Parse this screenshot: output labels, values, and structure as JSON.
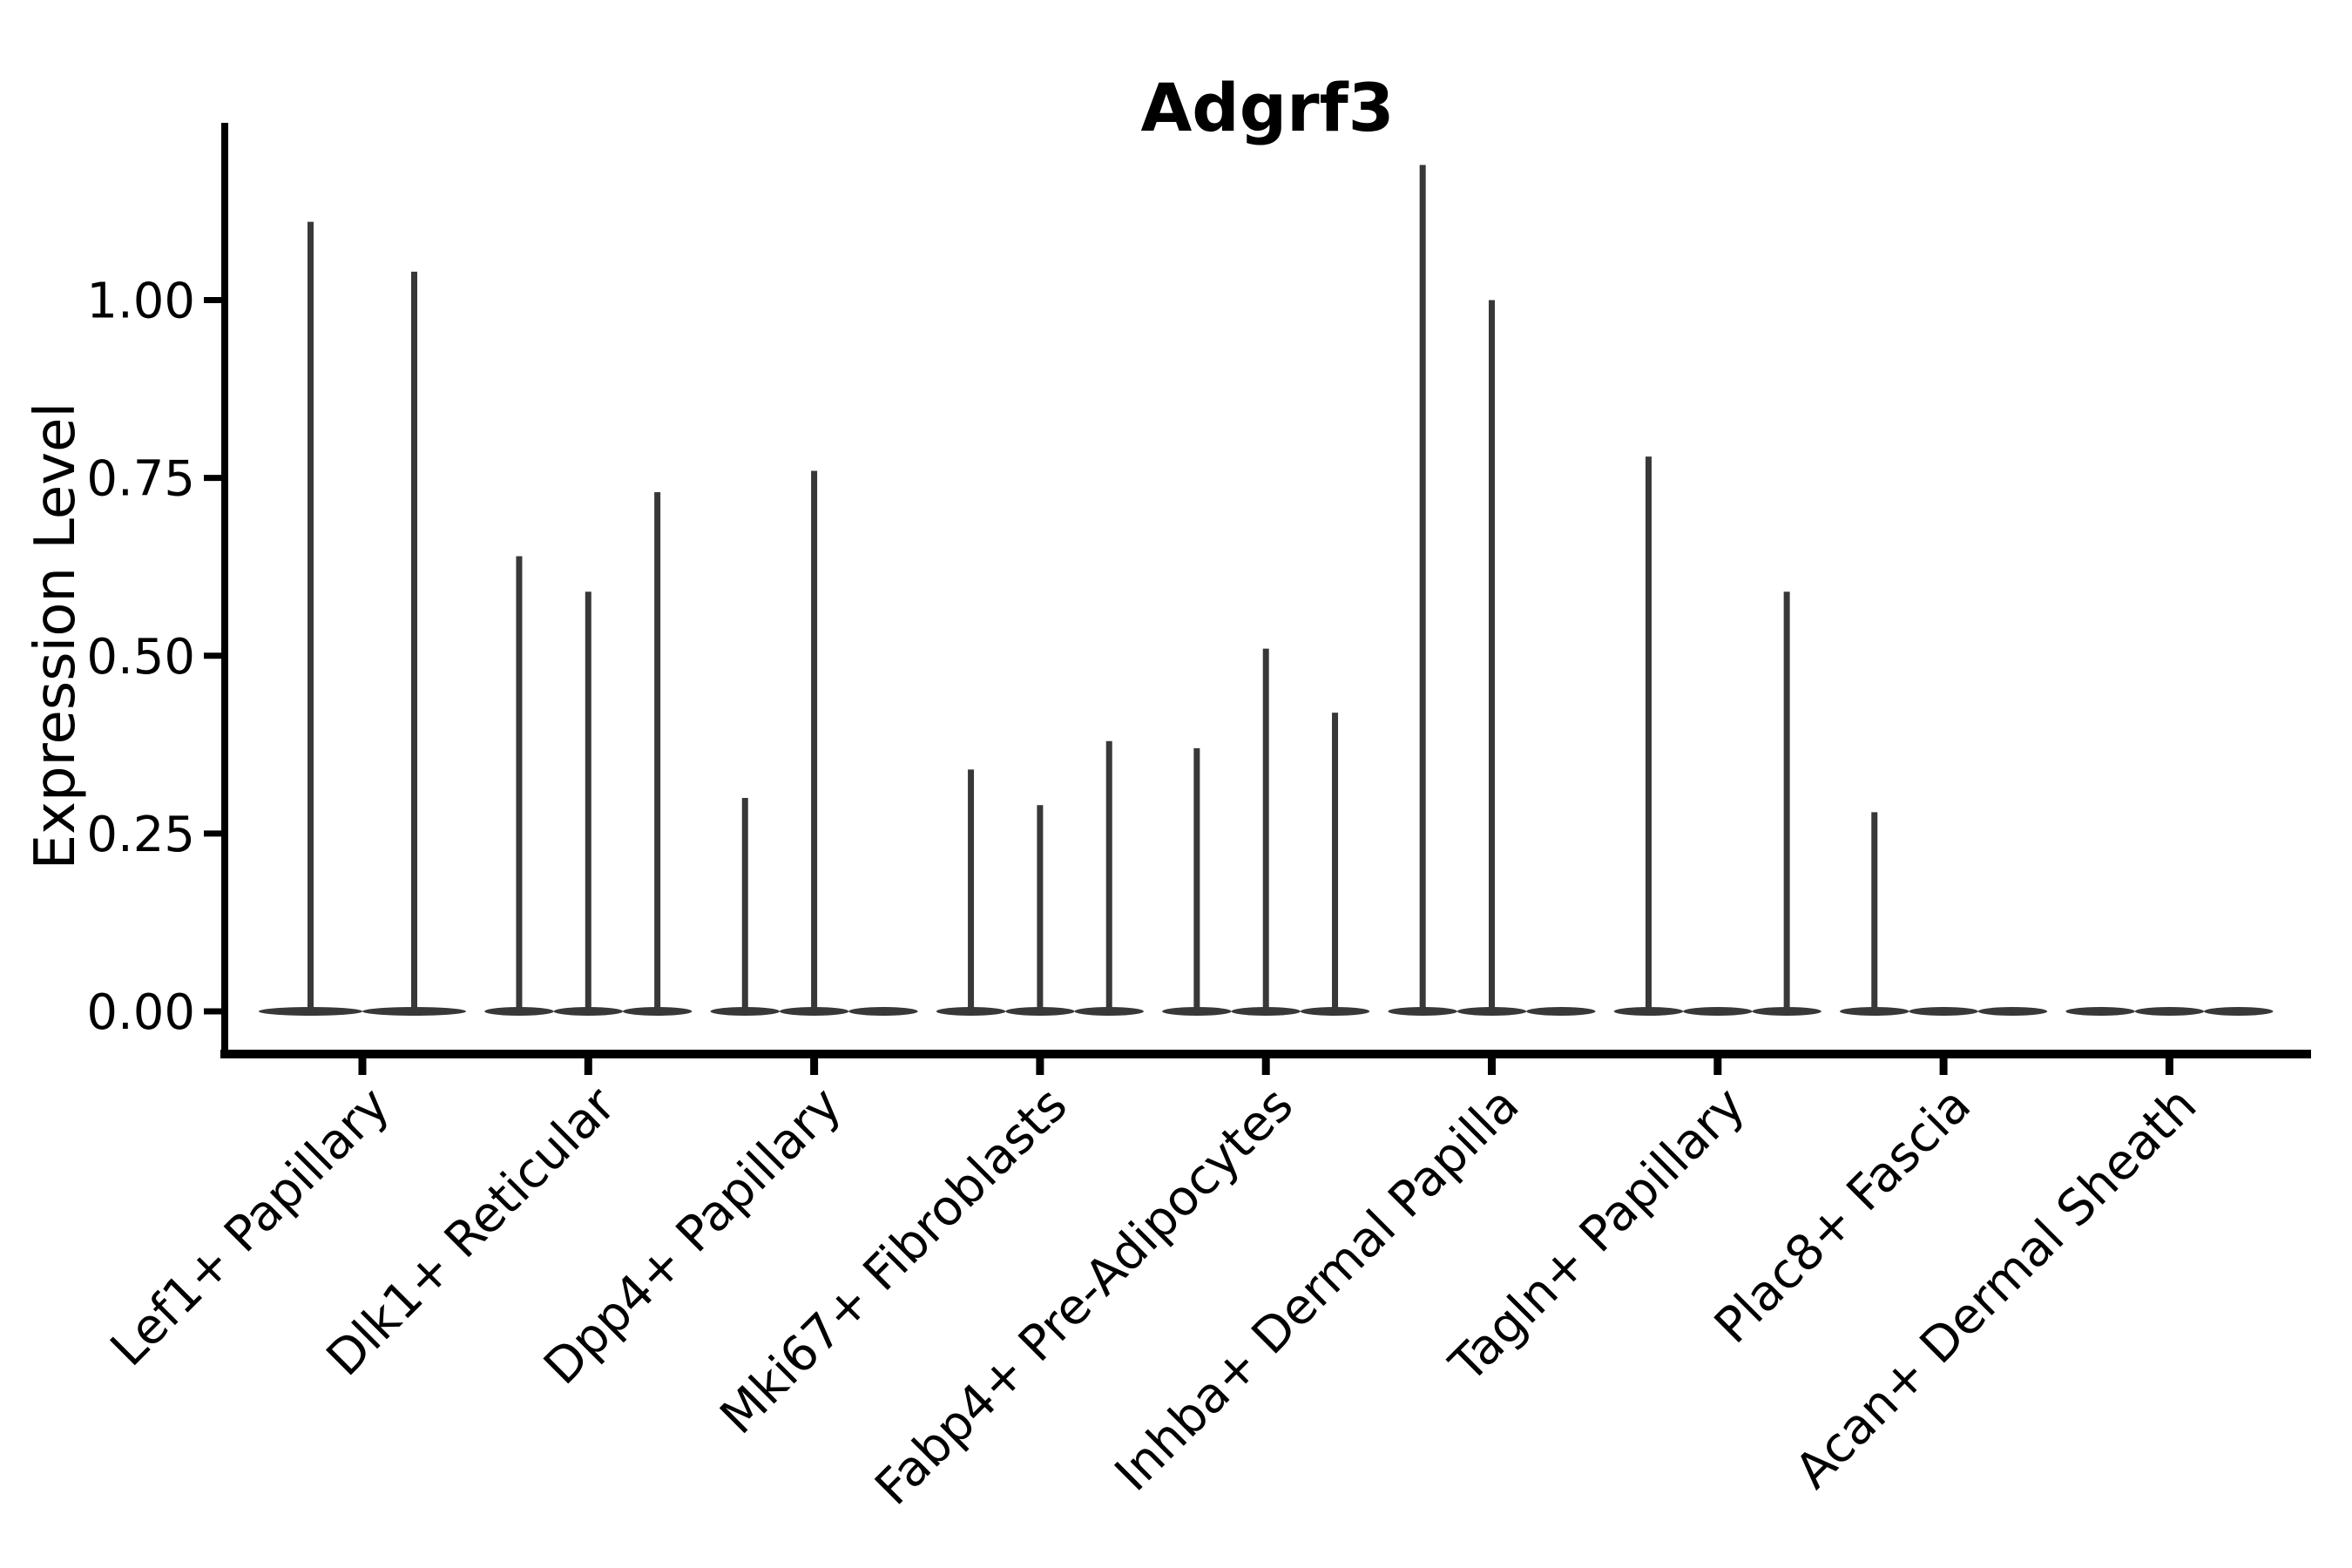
{
  "chart_data": {
    "type": "violin",
    "title": "Adgrf3",
    "xlabel": "",
    "ylabel": "Expression Level",
    "grid": false,
    "legend": "none",
    "ylim": [
      -0.06,
      1.25
    ],
    "yticks": [
      {
        "value": 0.0,
        "label": "0.00"
      },
      {
        "value": 0.25,
        "label": "0.25"
      },
      {
        "value": 0.5,
        "label": "0.50"
      },
      {
        "value": 0.75,
        "label": "0.75"
      },
      {
        "value": 1.0,
        "label": "1.00"
      }
    ],
    "categories": [
      "Lef1+ Papillary",
      "Dlk1+ Reticular",
      "Dpp4+ Papillary",
      "Mki67+ Fibroblasts",
      "Fabp4+ Pre-Adipocytes",
      "Inhba+ Dermal Papilla",
      "Tagln+ Papillary",
      "Plac8+ Fascia",
      "Acan+ Dermal Sheath"
    ],
    "groups": [
      {
        "label": "Lef1+ Papillary",
        "violin_maxima": [
          1.11,
          1.04
        ]
      },
      {
        "label": "Dlk1+ Reticular",
        "violin_maxima": [
          0.64,
          0.59,
          0.73
        ]
      },
      {
        "label": "Dpp4+ Papillary",
        "violin_maxima": [
          0.3,
          0.76,
          0.0
        ]
      },
      {
        "label": "Mki67+ Fibroblasts",
        "violin_maxima": [
          0.34,
          0.29,
          0.38
        ]
      },
      {
        "label": "Fabp4+ Pre-Adipocytes",
        "violin_maxima": [
          0.37,
          0.51,
          0.42
        ]
      },
      {
        "label": "Inhba+ Dermal Papilla",
        "violin_maxima": [
          1.19,
          1.0,
          0.0
        ]
      },
      {
        "label": "Tagln+ Papillary",
        "violin_maxima": [
          0.78,
          0.0,
          0.59
        ]
      },
      {
        "label": "Plac8+ Fascia",
        "violin_maxima": [
          0.28,
          0.0,
          0.0
        ]
      },
      {
        "label": "Acan+ Dermal Sheath",
        "violin_maxima": [
          0.0,
          0.0,
          0.0
        ]
      }
    ],
    "colors": {
      "violin": "#383838",
      "axis": "#000000",
      "text": "#000000",
      "background": "#ffffff"
    }
  }
}
